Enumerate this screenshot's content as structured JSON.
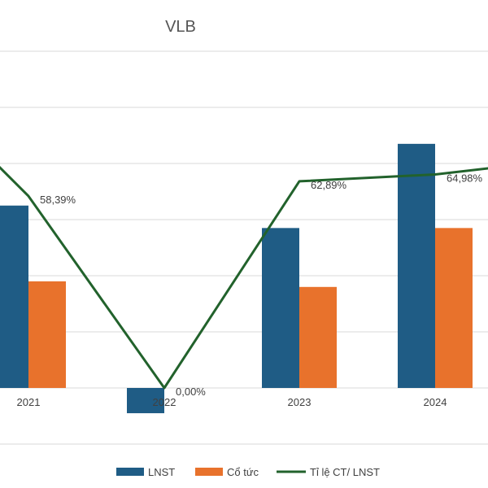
{
  "chart_data": {
    "type": "bar",
    "title": "VLB",
    "categories": [
      "2021",
      "2022",
      "2023",
      "2024"
    ],
    "series": [
      {
        "name": "LNST",
        "kind": "bar",
        "axis": "left",
        "color": "#1f5c85",
        "values": [
          325,
          -45,
          285,
          435
        ]
      },
      {
        "name": "Cổ tức",
        "kind": "bar",
        "axis": "left",
        "color": "#e8722c",
        "values": [
          190,
          0,
          180,
          285
        ]
      },
      {
        "name": "Tỉ lệ CT/ LNST",
        "kind": "line",
        "axis": "right",
        "color": "#22622c",
        "values": [
          58.39,
          0.0,
          62.89,
          64.98
        ],
        "labels": [
          "58,39%",
          "0,00%",
          "62,89%",
          "64,98%"
        ]
      }
    ],
    "left_axis": {
      "min": -100,
      "max": 600
    },
    "right_axis": {
      "min": 0,
      "max": 100
    },
    "gridlines": true,
    "legend_position": "bottom"
  }
}
